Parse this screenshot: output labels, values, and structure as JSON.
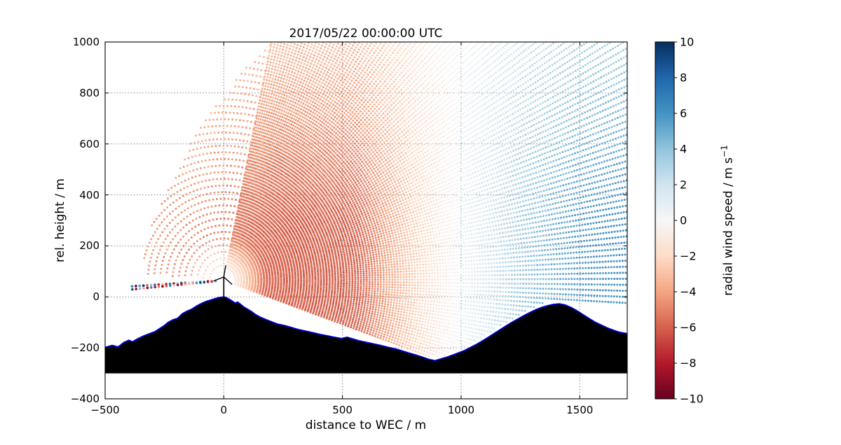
{
  "chart_data": {
    "type": "scatter",
    "description": "Doppler lidar scan of radial wind speed around a wind energy converter (WEC) over complex terrain; fan of range-gate dots colored by radial velocity, black terrain silhouette with blue surface line, wind turbine symbol at x=0.",
    "title": "2017/05/22 00:00:00 UTC",
    "xlabel": "distance to WEC / m",
    "ylabel": "rel. height / m",
    "xlim": [
      -500,
      1700
    ],
    "ylim": [
      -400,
      1000
    ],
    "grid": "dotted",
    "xticks": [
      -500,
      0,
      500,
      1000,
      1500
    ],
    "xtick_labels": [
      "−500",
      "0",
      "500",
      "1000",
      "1500"
    ],
    "yticks": [
      -400,
      -200,
      0,
      200,
      400,
      600,
      800,
      1000
    ],
    "ytick_labels": [
      "−400",
      "−200",
      "0",
      "200",
      "400",
      "600",
      "800",
      "1000"
    ],
    "colorbar": {
      "label_main": "radial wind speed / m s",
      "label_sup": "−1",
      "vmin": -10,
      "vmax": 10,
      "ticks": [
        10,
        8,
        6,
        4,
        2,
        0,
        -2,
        -4,
        -6,
        -8,
        -10
      ],
      "tick_labels": [
        "10",
        "8",
        "6",
        "4",
        "2",
        "0",
        "−2",
        "−4",
        "−6",
        "−8",
        "−10"
      ],
      "position": "right"
    },
    "colormap_stops": [
      {
        "v": -10,
        "color": "#67001f"
      },
      {
        "v": -8,
        "color": "#b2182b"
      },
      {
        "v": -6,
        "color": "#d6604d"
      },
      {
        "v": -4,
        "color": "#f4a582"
      },
      {
        "v": -2,
        "color": "#fddbc7"
      },
      {
        "v": 0,
        "color": "#f7f7f7"
      },
      {
        "v": 2,
        "color": "#d1e5f0"
      },
      {
        "v": 4,
        "color": "#92c5de"
      },
      {
        "v": 6,
        "color": "#4393c3"
      },
      {
        "v": 8,
        "color": "#2166ac"
      },
      {
        "v": 10,
        "color": "#053061"
      }
    ],
    "scan": {
      "origin": [
        0,
        65
      ],
      "elev_min": -19,
      "elev_max": 78,
      "elev_step": 0.8,
      "r_start": 50,
      "gate": 12,
      "r_max": 2600,
      "terrain_clearance": 12,
      "arc_table": [
        [
          335,
          176
        ],
        [
          385,
          135
        ],
        [
          430,
          122
        ],
        [
          500,
          110
        ],
        [
          715,
          90
        ],
        [
          950,
          78
        ]
      ],
      "arc_r_min": 60,
      "arc_r_max": 945,
      "arc_r_step": 26,
      "noisy_rays": [
        183.5,
        185.3
      ],
      "noisy_r_min": 35,
      "noisy_r_max": 390,
      "noisy_r_step": 16
    },
    "field": {
      "ramp_x": [
        -500,
        -100,
        250,
        560,
        975,
        1250,
        1500,
        1700
      ],
      "ramp_v": [
        -3.8,
        -4.6,
        -5.8,
        -5.8,
        0,
        3.6,
        5.6,
        6.2
      ],
      "height_fade_start": 300,
      "height_fade_amount": 0.45,
      "noise": 0.9
    },
    "terrain": {
      "fill": "#000000",
      "line_color": "#0000dd",
      "base": -300,
      "profile": [
        [
          -500,
          -198
        ],
        [
          -470,
          -190
        ],
        [
          -445,
          -196
        ],
        [
          -420,
          -178
        ],
        [
          -400,
          -170
        ],
        [
          -385,
          -176
        ],
        [
          -360,
          -163
        ],
        [
          -335,
          -152
        ],
        [
          -310,
          -143
        ],
        [
          -290,
          -136
        ],
        [
          -270,
          -124
        ],
        [
          -250,
          -112
        ],
        [
          -235,
          -100
        ],
        [
          -215,
          -90
        ],
        [
          -195,
          -84
        ],
        [
          -175,
          -66
        ],
        [
          -155,
          -56
        ],
        [
          -135,
          -48
        ],
        [
          -115,
          -36
        ],
        [
          -95,
          -26
        ],
        [
          -75,
          -18
        ],
        [
          -55,
          -12
        ],
        [
          -38,
          -7
        ],
        [
          -22,
          -3
        ],
        [
          -8,
          -1
        ],
        [
          0,
          0
        ],
        [
          10,
          -2
        ],
        [
          22,
          -8
        ],
        [
          35,
          -16
        ],
        [
          48,
          -24
        ],
        [
          58,
          -20
        ],
        [
          70,
          -28
        ],
        [
          85,
          -40
        ],
        [
          100,
          -48
        ],
        [
          118,
          -58
        ],
        [
          135,
          -70
        ],
        [
          155,
          -80
        ],
        [
          175,
          -88
        ],
        [
          200,
          -97
        ],
        [
          225,
          -106
        ],
        [
          255,
          -112
        ],
        [
          285,
          -120
        ],
        [
          315,
          -128
        ],
        [
          345,
          -134
        ],
        [
          375,
          -140
        ],
        [
          405,
          -147
        ],
        [
          435,
          -152
        ],
        [
          465,
          -158
        ],
        [
          495,
          -163
        ],
        [
          520,
          -158
        ],
        [
          545,
          -165
        ],
        [
          570,
          -172
        ],
        [
          600,
          -178
        ],
        [
          630,
          -184
        ],
        [
          660,
          -190
        ],
        [
          690,
          -197
        ],
        [
          720,
          -203
        ],
        [
          750,
          -211
        ],
        [
          780,
          -220
        ],
        [
          810,
          -228
        ],
        [
          840,
          -237
        ],
        [
          865,
          -245
        ],
        [
          890,
          -250
        ],
        [
          915,
          -243
        ],
        [
          940,
          -236
        ],
        [
          965,
          -228
        ],
        [
          990,
          -219
        ],
        [
          1015,
          -210
        ],
        [
          1040,
          -198
        ],
        [
          1065,
          -186
        ],
        [
          1090,
          -172
        ],
        [
          1115,
          -158
        ],
        [
          1140,
          -143
        ],
        [
          1165,
          -128
        ],
        [
          1190,
          -113
        ],
        [
          1215,
          -99
        ],
        [
          1240,
          -86
        ],
        [
          1265,
          -73
        ],
        [
          1290,
          -61
        ],
        [
          1315,
          -50
        ],
        [
          1340,
          -41
        ],
        [
          1365,
          -34
        ],
        [
          1390,
          -29
        ],
        [
          1415,
          -27
        ],
        [
          1440,
          -32
        ],
        [
          1465,
          -42
        ],
        [
          1490,
          -55
        ],
        [
          1515,
          -70
        ],
        [
          1540,
          -85
        ],
        [
          1565,
          -99
        ],
        [
          1590,
          -110
        ],
        [
          1615,
          -121
        ],
        [
          1640,
          -130
        ],
        [
          1665,
          -138
        ],
        [
          1700,
          -144
        ]
      ]
    },
    "turbine": {
      "x": 0,
      "hub_height": 78,
      "blade_length": 46,
      "blade_angles": [
        80,
        200,
        320
      ]
    }
  }
}
